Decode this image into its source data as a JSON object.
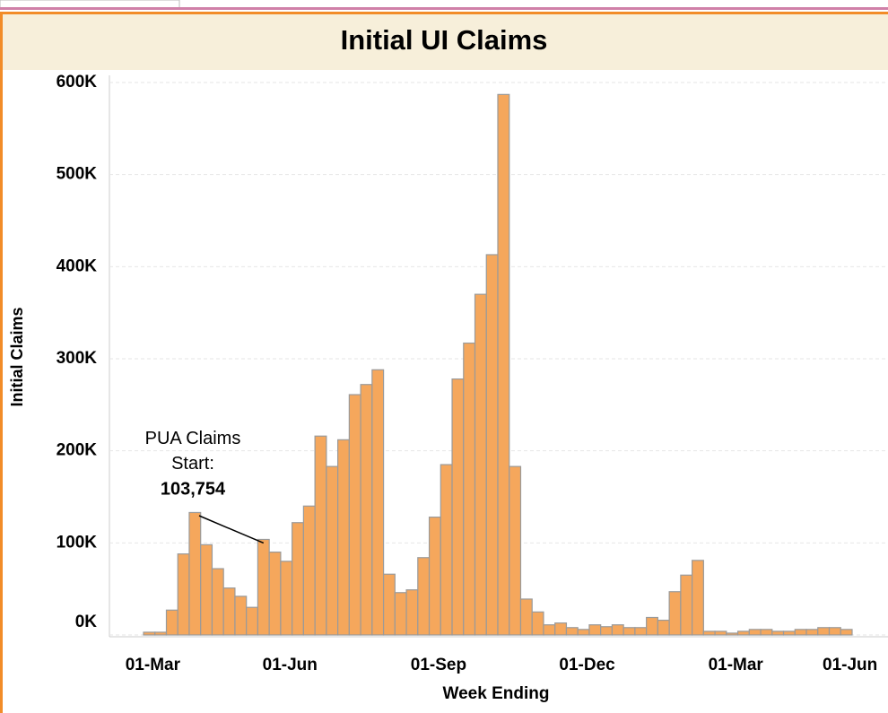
{
  "chart_data": {
    "type": "bar",
    "title": "Initial UI Claims",
    "x_label": "Week Ending",
    "y_label": "Initial Claims",
    "color": "#f5a75c",
    "grid": true,
    "ylim": [
      0,
      600000
    ],
    "yticks": [
      {
        "value": 0,
        "label": "0K"
      },
      {
        "value": 100000,
        "label": "100K"
      },
      {
        "value": 200000,
        "label": "200K"
      },
      {
        "value": 300000,
        "label": "300K"
      },
      {
        "value": 400000,
        "label": "400K"
      },
      {
        "value": 500000,
        "label": "500K"
      },
      {
        "value": 600000,
        "label": "600K"
      }
    ],
    "annotation": "PUA Claims Start:",
    "categories": [
      "01-Mar",
      null,
      null,
      null,
      null,
      null,
      null,
      null,
      null,
      null,
      null,
      null,
      "01-Jun",
      null,
      null,
      null,
      null,
      null,
      null,
      null,
      null,
      null,
      null,
      null,
      null,
      "01-Sep",
      null,
      null,
      null,
      null,
      null,
      null,
      null,
      null,
      null,
      null,
      null,
      null,
      "01-Dec",
      null,
      null,
      null,
      null,
      null,
      null,
      null,
      null,
      null,
      null,
      null,
      null,
      "01-Mar",
      null,
      null,
      null,
      null,
      null,
      null,
      null,
      null,
      null,
      "01-Jun"
    ],
    "values": [
      3000,
      3000,
      27000,
      88000,
      133000,
      98000,
      72000,
      51000,
      42000,
      30000,
      103754,
      90000,
      80000,
      122000,
      140000,
      216000,
      183000,
      212000,
      261000,
      272000,
      288000,
      66000,
      46000,
      49000,
      84000,
      128000,
      185000,
      278000,
      317000,
      370000,
      413000,
      587000,
      183000,
      39000,
      25000,
      11000,
      13000,
      8000,
      6000,
      11000,
      9000,
      11000,
      8000,
      8000,
      19000,
      16000,
      47000,
      65000,
      81000,
      4000,
      4000,
      2000,
      4000,
      6000,
      6000,
      4000,
      4000,
      6000,
      6000,
      8000,
      8000,
      6000
    ],
    "value_labels": [
      null,
      null,
      null,
      null,
      null,
      null,
      null,
      null,
      null,
      null,
      "103,754",
      null,
      null,
      null,
      null,
      null,
      null,
      null,
      null,
      null,
      null,
      null,
      null,
      null,
      null,
      null,
      null,
      null,
      null,
      null,
      null,
      null,
      null,
      null,
      null,
      null,
      null,
      null,
      null,
      null,
      null,
      null,
      null,
      null,
      null,
      null,
      null,
      null,
      null,
      null,
      null,
      null,
      null,
      null,
      null,
      null,
      null,
      null,
      null,
      null,
      null,
      null
    ]
  }
}
